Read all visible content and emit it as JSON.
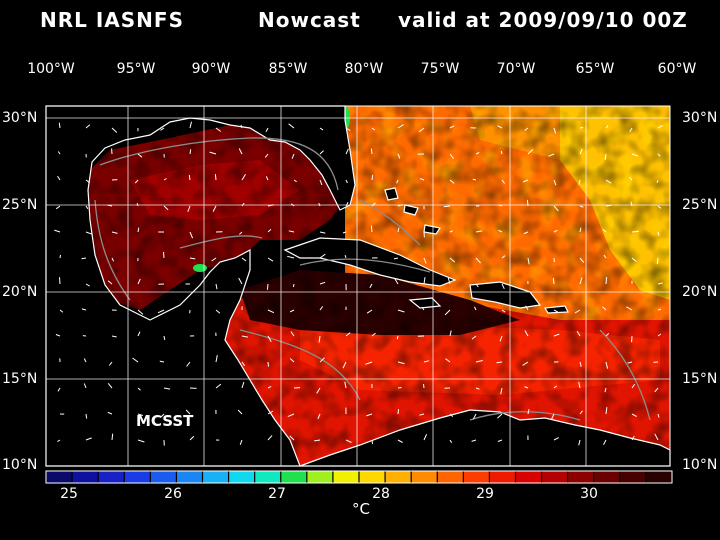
{
  "header": {
    "title_left": "NRL IASNFS",
    "title_center": "Nowcast",
    "title_right": "valid at 2009/09/10 00Z"
  },
  "map": {
    "lon_labels": [
      "100°W",
      "95°W",
      "90°W",
      "85°W",
      "80°W",
      "75°W",
      "70°W",
      "65°W",
      "60°W"
    ],
    "lat_labels": [
      "30°N",
      "25°N",
      "20°N",
      "15°N",
      "10°N"
    ],
    "source_label": "MCSST",
    "background_color": "#000000",
    "land_outline_color": "#ffffff",
    "isobath_color": "#8c8c8c"
  },
  "colorbar": {
    "tick_labels": [
      "25",
      "26",
      "27",
      "28",
      "29",
      "30"
    ],
    "units": "°C",
    "colors": [
      "#0a0a6a",
      "#1010a0",
      "#1820c8",
      "#1a3ce6",
      "#1a5cf0",
      "#1a86f5",
      "#1ab0f5",
      "#10d8f0",
      "#10e8c0",
      "#20e050",
      "#a0f020",
      "#f0f000",
      "#ffd800",
      "#ffb000",
      "#ff8c00",
      "#ff6400",
      "#ff3c00",
      "#f01a00",
      "#d80000",
      "#b40000",
      "#8c0000",
      "#6a0000",
      "#460000",
      "#280000"
    ]
  }
}
